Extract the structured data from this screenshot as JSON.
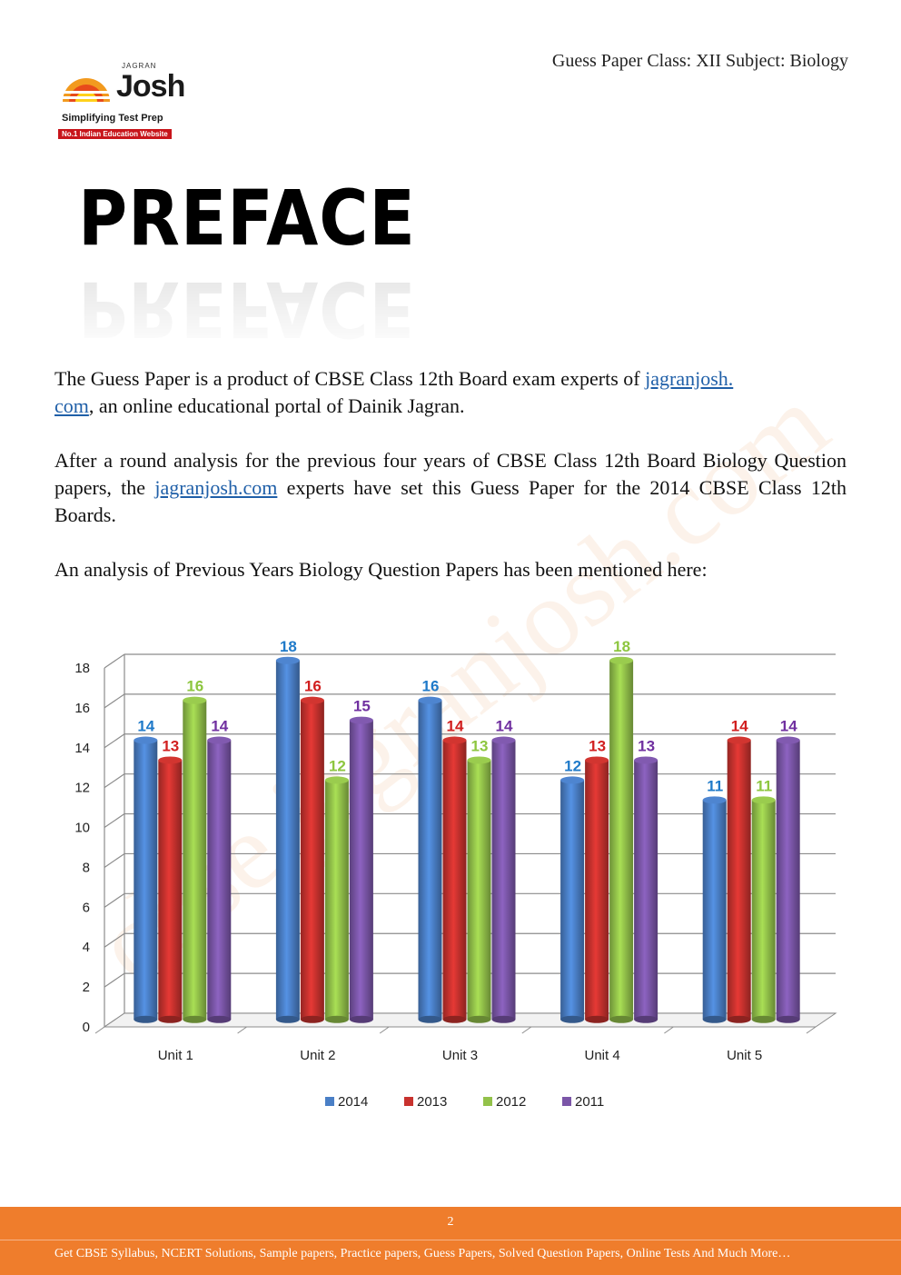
{
  "header": {
    "title": "Guess Paper Class: XII Subject: Biology"
  },
  "logo": {
    "small_text": "JAGRAN",
    "brand": "Josh",
    "tagline": "Simplifying Test Prep",
    "badge": "No.1 Indian Education Website"
  },
  "page_title": "PREFACE",
  "body": {
    "p1_text": "The Guess Paper is a product of CBSE Class 12th Board exam experts of ",
    "p1_link_a": "jagranjosh.",
    "p1_link_b": "com",
    "p1_text_end": ", an online educational portal of Dainik Jagran.",
    "p2_text": "After a round analysis for the previous four years of CBSE Class 12th Board Biology Question papers, the ",
    "p2_link": "jagranjosh.com",
    "p2_text_end": " experts have set this Guess Paper for the 2014 CBSE Class 12th Boards.",
    "p3_text": "An analysis of Previous Years Biology Question Papers has been mentioned here:"
  },
  "watermark": "cbse.jagranjosh.com",
  "chart_data": {
    "type": "bar",
    "categories": [
      "Unit 1",
      "Unit 2",
      "Unit 3",
      "Unit 4",
      "Unit 5"
    ],
    "series": [
      {
        "name": "2014",
        "color": "#4a7fc6",
        "values": [
          14,
          18,
          16,
          12,
          11
        ]
      },
      {
        "name": "2013",
        "color": "#c8322e",
        "values": [
          13,
          16,
          14,
          13,
          14
        ]
      },
      {
        "name": "2012",
        "color": "#93c24a",
        "values": [
          16,
          12,
          13,
          18,
          11
        ]
      },
      {
        "name": "2011",
        "color": "#7b56a8",
        "values": [
          14,
          15,
          14,
          13,
          14
        ]
      }
    ],
    "label_colors": [
      "#1f7ac9",
      "#d11f1f",
      "#8dc63f",
      "#7030a0"
    ],
    "yticks": [
      0,
      2,
      4,
      6,
      8,
      10,
      12,
      14,
      16,
      18
    ],
    "ylim": [
      0,
      18
    ],
    "grid": true,
    "legend_position": "bottom",
    "title": "",
    "xlabel": "",
    "ylabel": ""
  },
  "footer": {
    "page_number": "2",
    "text": "Get CBSE Syllabus, NCERT Solutions, Sample papers, Practice papers, Guess Papers, Solved Question Papers, Online Tests And Much More…"
  }
}
